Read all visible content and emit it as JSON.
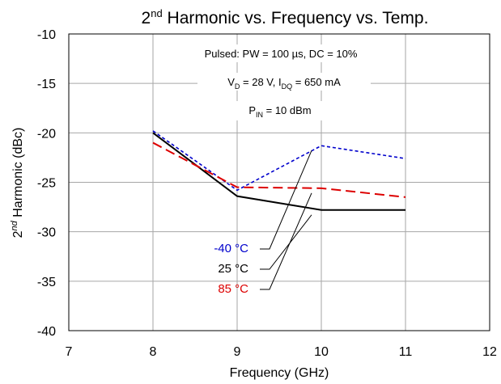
{
  "chart_data": {
    "type": "line",
    "title": {
      "prefix": "2",
      "sup": "nd",
      "rest": " Harmonic vs. Frequency vs. Temp."
    },
    "xlabel": "Frequency (GHz)",
    "ylabel": {
      "prefix": "2",
      "sup": "nd",
      "rest": " Harmonic (dBc)"
    },
    "xlim": [
      7,
      12
    ],
    "ylim": [
      -40,
      -10
    ],
    "xticks": [
      "7",
      "8",
      "9",
      "10",
      "11",
      "12"
    ],
    "yticks": [
      "-10",
      "-15",
      "-20",
      "-25",
      "-30",
      "-35",
      "-40"
    ],
    "grid": true,
    "annotations": {
      "line1": "Pulsed: PW = 100 µs, DC = 10%",
      "line2": {
        "a": "V",
        "a_sub": "D",
        "b": " = 28 V, I",
        "b_sub": "DQ",
        "c": " = 650 mA"
      },
      "line3": {
        "a": "P",
        "a_sub": "IN",
        "b": " = 10 dBm"
      }
    },
    "series": [
      {
        "name": "-40 °C",
        "color": "#0000cc",
        "dash": "dotted",
        "x": [
          8,
          9,
          10,
          11
        ],
        "y": [
          -19.8,
          -25.8,
          -21.3,
          -22.6
        ]
      },
      {
        "name": "25 °C",
        "color": "#000000",
        "dash": "solid",
        "x": [
          8,
          9,
          10,
          11
        ],
        "y": [
          -20.0,
          -26.4,
          -27.8,
          -27.8
        ]
      },
      {
        "name": "85 °C",
        "color": "#dd0000",
        "dash": "dashed",
        "x": [
          8,
          9,
          10,
          11
        ],
        "y": [
          -21.0,
          -25.5,
          -25.6,
          -26.5
        ]
      }
    ]
  }
}
